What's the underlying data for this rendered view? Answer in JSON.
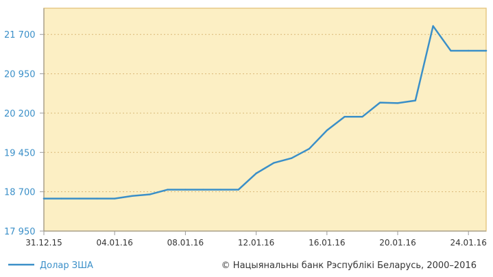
{
  "chart_data": {
    "type": "line",
    "title": "",
    "xlabel": "",
    "ylabel": "",
    "y_ticks": [
      "17 950",
      "18 700",
      "19 450",
      "20 200",
      "20 950",
      "21 700"
    ],
    "y_tick_values": [
      17950,
      18700,
      19450,
      20200,
      20950,
      21700
    ],
    "ylim": [
      17950,
      22200
    ],
    "x_tick_labels": [
      "31.12.15",
      "04.01.16",
      "08.01.16",
      "12.01.16",
      "16.01.16",
      "20.01.16",
      "24.01.16"
    ],
    "x_tick_days": [
      0,
      4,
      8,
      12,
      16,
      20,
      24
    ],
    "xlim": [
      0,
      25
    ],
    "grid": "horizontal dashed",
    "legend_position": "bottom-left",
    "colors": {
      "line": "#3a8fc8",
      "plot_bg": "#fcefc4",
      "border": "#e6c985",
      "grid": "#d9b877"
    },
    "series": [
      {
        "name": "Долар ЗША",
        "x": [
          "31.12.15",
          "01.01.16",
          "02.01.16",
          "03.01.16",
          "04.01.16",
          "05.01.16",
          "06.01.16",
          "07.01.16",
          "08.01.16",
          "09.01.16",
          "10.01.16",
          "11.01.16",
          "12.01.16",
          "13.01.16",
          "14.01.16",
          "15.01.16",
          "16.01.16",
          "17.01.16",
          "18.01.16",
          "19.01.16",
          "20.01.16",
          "21.01.16",
          "22.01.16",
          "23.01.16",
          "24.01.16",
          "25.01.16"
        ],
        "values": [
          18570,
          18570,
          18570,
          18570,
          18570,
          18620,
          18650,
          18740,
          18740,
          18740,
          18740,
          18740,
          19050,
          19250,
          19340,
          19520,
          19870,
          20130,
          20130,
          20400,
          20390,
          20440,
          21860,
          21390,
          21390,
          21390
        ]
      }
    ]
  },
  "legend": {
    "label": "Долар ЗША"
  },
  "footer": {
    "copyright": "© Нацыянальны банк Рэспублікі Беларусь, 2000–2016"
  }
}
